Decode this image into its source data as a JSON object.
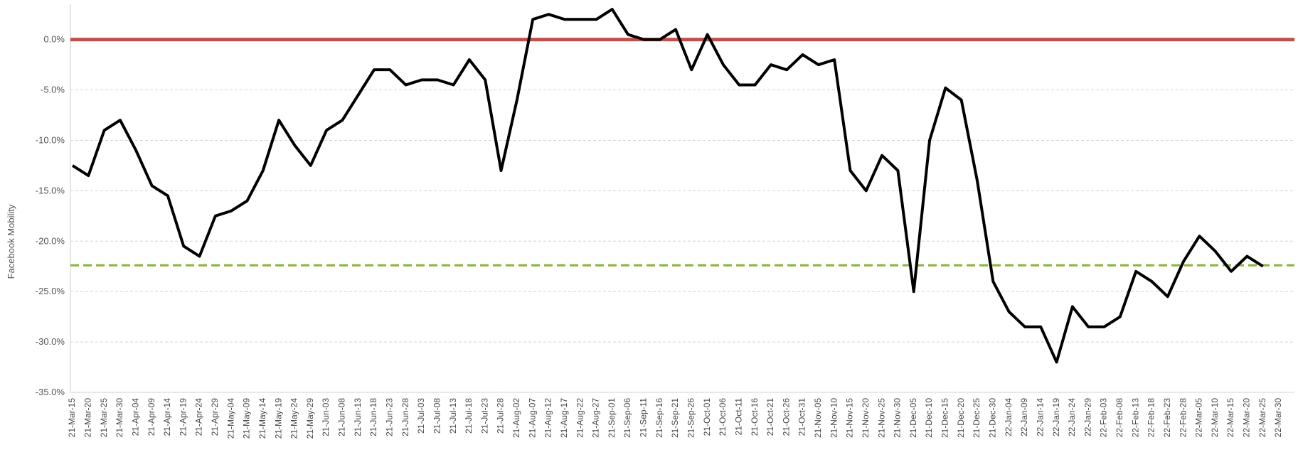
{
  "chart_data": {
    "type": "line",
    "y_label": "Facebook Mobility",
    "categories": [
      "21-Mar-15",
      "21-Mar-20",
      "21-Mar-25",
      "21-Mar-30",
      "21-Apr-04",
      "21-Apr-09",
      "21-Apr-14",
      "21-Apr-19",
      "21-Apr-24",
      "21-Apr-29",
      "21-May-04",
      "21-May-09",
      "21-May-14",
      "21-May-19",
      "21-May-24",
      "21-May-29",
      "21-Jun-03",
      "21-Jun-08",
      "21-Jun-13",
      "21-Jun-18",
      "21-Jun-23",
      "21-Jun-28",
      "21-Jul-03",
      "21-Jul-08",
      "21-Jul-13",
      "21-Jul-18",
      "21-Jul-23",
      "21-Jul-28",
      "21-Aug-02",
      "21-Aug-07",
      "21-Aug-12",
      "21-Aug-17",
      "21-Aug-22",
      "21-Aug-27",
      "21-Sep-01",
      "21-Sep-06",
      "21-Sep-11",
      "21-Sep-16",
      "21-Sep-21",
      "21-Sep-26",
      "21-Oct-01",
      "21-Oct-06",
      "21-Oct-11",
      "21-Oct-16",
      "21-Oct-21",
      "21-Oct-26",
      "21-Oct-31",
      "21-Nov-05",
      "21-Nov-10",
      "21-Nov-15",
      "21-Nov-20",
      "21-Nov-25",
      "21-Nov-30",
      "21-Dec-05",
      "21-Dec-10",
      "21-Dec-15",
      "21-Dec-20",
      "21-Dec-25",
      "21-Dec-30",
      "22-Jan-04",
      "22-Jan-09",
      "22-Jan-14",
      "22-Jan-19",
      "22-Jan-24",
      "22-Jan-29",
      "22-Feb-03",
      "22-Feb-08",
      "22-Feb-13",
      "22-Feb-18",
      "22-Feb-23",
      "22-Feb-28",
      "22-Mar-05",
      "22-Mar-10",
      "22-Mar-15",
      "22-Mar-20",
      "22-Mar-25",
      "22-Mar-30"
    ],
    "series": [
      {
        "name": "Facebook Mobility",
        "color": "#000000",
        "values": [
          -12.5,
          -13.5,
          -9,
          -8,
          -11,
          -14.5,
          -15.5,
          -20.5,
          -21.5,
          -17.5,
          -17,
          -16,
          -13,
          -8,
          -10.5,
          -12.5,
          -9,
          -8,
          -5.5,
          -3,
          -3,
          -4.5,
          -4,
          -4,
          -4.5,
          -2,
          -4,
          -13,
          -6,
          2,
          2.5,
          2,
          2,
          2,
          3,
          0.5,
          0,
          0,
          1,
          -3,
          0.5,
          -2.5,
          -4.5,
          -4.5,
          -2.5,
          -3,
          -1.5,
          -2.5,
          -2,
          -13,
          -15,
          -11.5,
          -13,
          -25,
          -10,
          -4.8,
          -6,
          -14,
          -24,
          -27,
          -28.5,
          -28.5,
          -32,
          -26.5,
          -28.5,
          -28.5,
          -27.5,
          -23,
          -24,
          -25.5,
          -22,
          -19.5,
          -21,
          -23,
          -21.5,
          -22.5,
          null
        ]
      }
    ],
    "reference_lines": [
      {
        "value": 0,
        "color": "#c0504d",
        "style": "solid"
      },
      {
        "value": -22.4,
        "color": "#8ab43c",
        "style": "dashed"
      }
    ],
    "ylim": [
      -35,
      3.5
    ],
    "yticks": [
      {
        "value": -35,
        "label": "-35.0%"
      },
      {
        "value": -30,
        "label": "-30.0%"
      },
      {
        "value": -25,
        "label": "-25.0%"
      },
      {
        "value": -20,
        "label": "-20.0%"
      },
      {
        "value": -15,
        "label": "-15.0%"
      },
      {
        "value": -10,
        "label": "-10.0%"
      },
      {
        "value": -5,
        "label": "-5.0%"
      },
      {
        "value": 0,
        "label": "0.0%"
      }
    ],
    "grid": true
  }
}
